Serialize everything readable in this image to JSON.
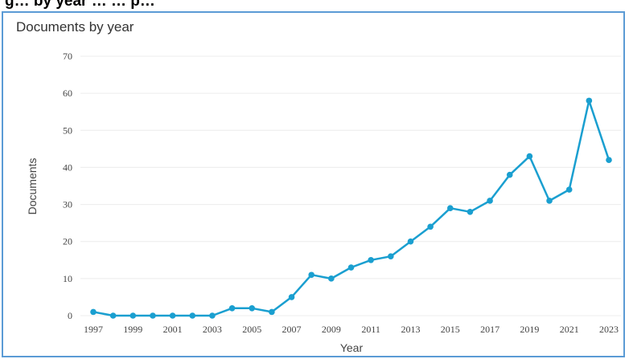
{
  "caption_fragment": "g… by year … … p…",
  "chart_data": {
    "type": "line",
    "title": "Documents by year",
    "xlabel": "Year",
    "ylabel": "Documents",
    "ylim": [
      0,
      70
    ],
    "y_ticks": [
      0,
      10,
      20,
      30,
      40,
      50,
      60,
      70
    ],
    "x_ticks": [
      "1997",
      "1999",
      "2001",
      "2003",
      "2005",
      "2007",
      "2009",
      "2011",
      "2013",
      "2015",
      "2017",
      "2019",
      "2021",
      "2023"
    ],
    "x": [
      1997,
      1998,
      1999,
      2000,
      2001,
      2002,
      2003,
      2004,
      2005,
      2006,
      2007,
      2008,
      2009,
      2010,
      2011,
      2012,
      2013,
      2014,
      2015,
      2016,
      2017,
      2018,
      2019,
      2020,
      2021,
      2022,
      2023
    ],
    "values": [
      1,
      0,
      0,
      0,
      0,
      0,
      0,
      2,
      2,
      1,
      5,
      11,
      10,
      13,
      15,
      16,
      20,
      24,
      29,
      28,
      31,
      38,
      43,
      31,
      34,
      58,
      42
    ],
    "grid": true,
    "legend": "none",
    "line_color": "#1a9fd0"
  }
}
